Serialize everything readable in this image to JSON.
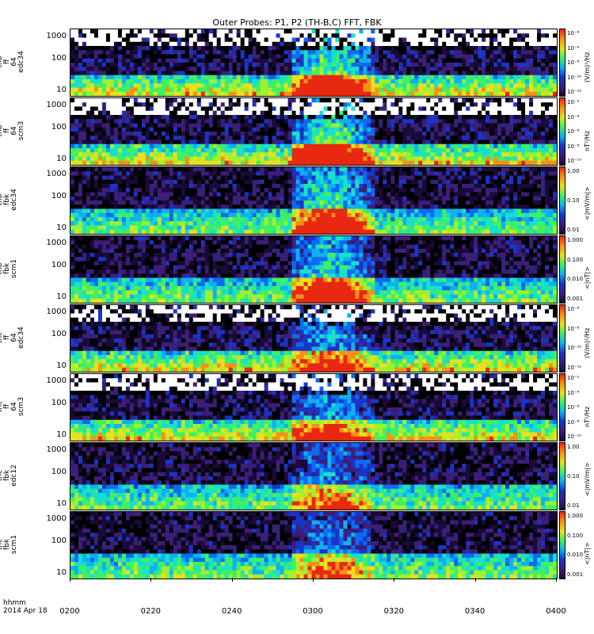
{
  "title": "Outer Probes: P1, P2 (TH-B,C) FFT, FBK",
  "footer": {
    "time_label": "hhmm",
    "date_label": "2014 Apr 18"
  },
  "chart_data": {
    "type": "heatmap",
    "title": "Outer Probes: P1, P2 (TH-B,C) FFT, FBK",
    "xlabel": "hhmm",
    "x_ticks": [
      "0200",
      "0220",
      "0240",
      "0300",
      "0320",
      "0340",
      "0400"
    ],
    "x_range": [
      "0200",
      "0400"
    ],
    "panels": [
      {
        "label": [
          "thb",
          "ff",
          "64",
          "edc34"
        ],
        "y_ticks": [
          "10",
          "100",
          "1000"
        ],
        "y_scale": "log",
        "cbar_ticks": [
          "10⁻⁴",
          "10⁻⁶",
          "10⁻⁸",
          "10⁻¹⁰",
          "10⁻¹²"
        ],
        "cbar_unit": "(V/m)²/Hz"
      },
      {
        "label": [
          "thb",
          "ff",
          "64",
          "scm3"
        ],
        "y_ticks": [
          "10",
          "100",
          "1000"
        ],
        "y_scale": "log",
        "cbar_ticks": [
          "10⁻²",
          "10⁻⁴",
          "10⁻⁶",
          "10⁻⁸",
          "10⁻¹⁰"
        ],
        "cbar_unit": "nT²/Hz"
      },
      {
        "label": [
          "thb",
          "fbk",
          "edc34"
        ],
        "y_ticks": [
          "10",
          "100",
          "1000"
        ],
        "y_scale": "log",
        "cbar_ticks": [
          "1.00",
          "0.10",
          "0.01"
        ],
        "cbar_unit": "<|mV/m|>"
      },
      {
        "label": [
          "thb",
          "fbk",
          "scm1"
        ],
        "y_ticks": [
          "10",
          "100",
          "1000"
        ],
        "y_scale": "log",
        "cbar_ticks": [
          "1.000",
          "0.100",
          "0.010",
          "0.001"
        ],
        "cbar_unit": "<|nT|>"
      },
      {
        "label": [
          "thc",
          "ff",
          "64",
          "edc34"
        ],
        "y_ticks": [
          "10",
          "100",
          "1000"
        ],
        "y_scale": "log",
        "cbar_ticks": [
          "10⁻⁶",
          "10⁻⁸",
          "10⁻¹⁰",
          "10⁻¹²"
        ],
        "cbar_unit": "(V/m)²/Hz"
      },
      {
        "label": [
          "thc",
          "ff",
          "64",
          "scm3"
        ],
        "y_ticks": [
          "10",
          "100",
          "1000"
        ],
        "y_scale": "log",
        "cbar_ticks": [
          "10⁻²",
          "10⁻⁴",
          "10⁻⁶",
          "10⁻⁸",
          "10⁻¹⁰"
        ],
        "cbar_unit": "nT²/Hz"
      },
      {
        "label": [
          "thc",
          "fbk",
          "edc12"
        ],
        "y_ticks": [
          "10",
          "100",
          "1000"
        ],
        "y_scale": "log",
        "cbar_ticks": [
          "1.00",
          "0.10",
          "0.01"
        ],
        "cbar_unit": "<|mV/m|>"
      },
      {
        "label": [
          "thc",
          "fbk",
          "scm1"
        ],
        "y_ticks": [
          "10",
          "100",
          "1000"
        ],
        "y_scale": "log",
        "cbar_ticks": [
          "1.000",
          "0.100",
          "0.010",
          "0.001"
        ],
        "cbar_unit": "<|nT|>"
      }
    ]
  }
}
